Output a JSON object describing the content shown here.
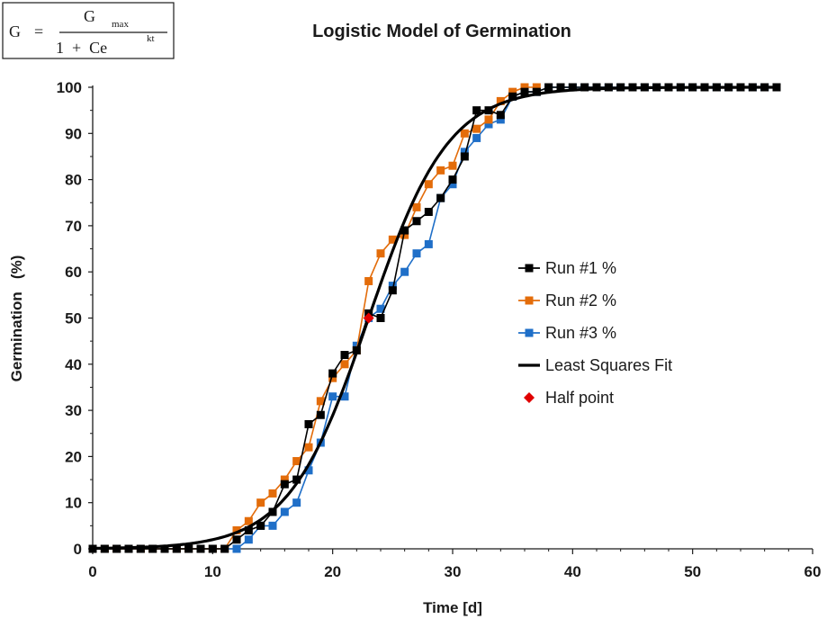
{
  "formula": {
    "lhs": "G",
    "equals": "=",
    "numerator": "G",
    "numerator_sub": "max",
    "denominator": "1  +  Ce",
    "denominator_sup": "kt"
  },
  "chart_data": {
    "type": "line",
    "title": "Logistic Model of Germination",
    "xlabel": "Time [d]",
    "ylabel": "Germination   (%)",
    "xlim": [
      0,
      60
    ],
    "ylim": [
      0,
      100
    ],
    "xticks": [
      0,
      10,
      20,
      30,
      40,
      50,
      60
    ],
    "yticks": [
      0,
      10,
      20,
      30,
      40,
      50,
      60,
      70,
      80,
      90,
      100
    ],
    "legend_position": "right-middle",
    "series": [
      {
        "name": "Run #1 %",
        "color": "#000000",
        "marker": "square",
        "x": [
          0,
          1,
          2,
          3,
          4,
          5,
          6,
          7,
          8,
          9,
          10,
          11,
          12,
          13,
          14,
          15,
          16,
          17,
          18,
          19,
          20,
          21,
          22,
          23,
          24,
          25,
          26,
          27,
          28,
          29,
          30,
          31,
          32,
          33,
          34,
          35,
          36,
          37,
          38,
          39,
          40,
          41,
          42,
          43,
          44,
          45,
          46,
          47,
          48,
          49,
          50,
          51,
          52,
          53,
          54,
          55,
          56,
          57
        ],
        "values": [
          0,
          0,
          0,
          0,
          0,
          0,
          0,
          0,
          0,
          0,
          0,
          0,
          2,
          4,
          5,
          8,
          14,
          15,
          27,
          29,
          38,
          42,
          43,
          51,
          50,
          56,
          69,
          71,
          73,
          76,
          80,
          85,
          95,
          95,
          94,
          98,
          99,
          99,
          100,
          100,
          100,
          100,
          100,
          100,
          100,
          100,
          100,
          100,
          100,
          100,
          100,
          100,
          100,
          100,
          100,
          100,
          100,
          100
        ]
      },
      {
        "name": "Run #2 %",
        "color": "#e36c0a",
        "marker": "square",
        "x": [
          0,
          1,
          2,
          3,
          4,
          5,
          6,
          7,
          8,
          9,
          10,
          11,
          12,
          13,
          14,
          15,
          16,
          17,
          18,
          19,
          20,
          21,
          22,
          23,
          24,
          25,
          26,
          27,
          28,
          29,
          30,
          31,
          32,
          33,
          34,
          35,
          36,
          37
        ],
        "values": [
          0,
          0,
          0,
          0,
          0,
          0,
          0,
          0,
          0,
          0,
          0,
          0,
          4,
          6,
          10,
          12,
          15,
          19,
          22,
          32,
          37,
          40,
          43,
          58,
          64,
          67,
          68,
          74,
          79,
          82,
          83,
          90,
          91,
          93,
          97,
          99,
          100,
          100
        ]
      },
      {
        "name": "Run #3 %",
        "color": "#1f6fc8",
        "marker": "square",
        "x": [
          1,
          2,
          3,
          4,
          5,
          6,
          7,
          8,
          9,
          10,
          11,
          12,
          13,
          14,
          15,
          16,
          17,
          18,
          19,
          20,
          21,
          22,
          23,
          24,
          25,
          26,
          27,
          28,
          29,
          30,
          31,
          32,
          33,
          34,
          35,
          36,
          37,
          38,
          39,
          40,
          41,
          42,
          43,
          44,
          45,
          46,
          47,
          48,
          49,
          50,
          51,
          52,
          53,
          54,
          55,
          56,
          57
        ],
        "values": [
          0,
          0,
          0,
          0,
          0,
          0,
          0,
          0,
          0,
          0,
          0,
          0,
          2,
          5,
          5,
          8,
          10,
          17,
          23,
          33,
          33,
          44,
          50,
          52,
          57,
          60,
          64,
          66,
          76,
          79,
          86,
          89,
          92,
          93,
          98,
          99,
          99,
          100,
          100,
          100,
          100,
          100,
          100,
          100,
          100,
          100,
          100,
          100,
          100,
          100,
          100,
          100,
          100,
          100,
          100,
          100,
          100
        ]
      },
      {
        "name": "Least Squares Fit",
        "color": "#000000",
        "marker": "none",
        "model": {
          "Gmax": 100,
          "t_half": 23,
          "k": 0.3
        }
      },
      {
        "name": "Half point",
        "color": "#e00000",
        "marker": "diamond",
        "x": [
          23
        ],
        "values": [
          50
        ]
      }
    ]
  }
}
